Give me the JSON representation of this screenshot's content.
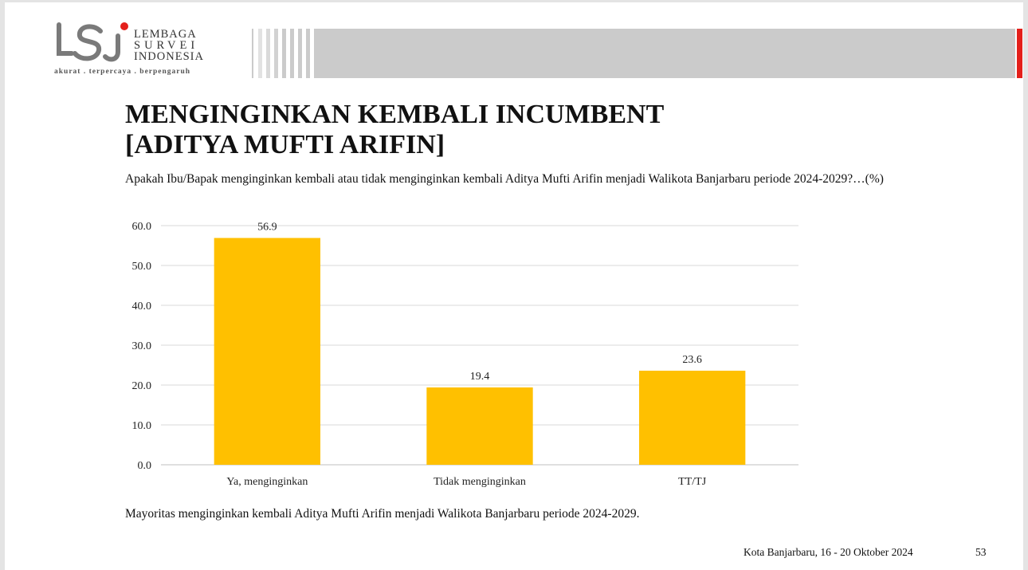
{
  "header": {
    "logo_mark": "LSI",
    "logo_line1": "LEMBAGA",
    "logo_line2": "SURVEI",
    "logo_line3": "INDONESIA",
    "tagline": "akurat . terpercaya . berpengaruh",
    "accent_color": "#e4201b"
  },
  "title_line1": "MENGINGINKAN KEMBALI INCUMBENT",
  "title_line2": "[ADITYA MUFTI ARIFIN]",
  "question": "Apakah Ibu/Bapak menginginkan kembali atau tidak menginginkan kembali Aditya Mufti Arifin menjadi Walikota Banjarbaru periode 2024-2029?…(%)",
  "chart_data": {
    "type": "bar",
    "categories": [
      "Ya, menginginkan",
      "Tidak menginginkan",
      "TT/TJ"
    ],
    "values": [
      56.9,
      19.4,
      23.6
    ],
    "value_labels": [
      "56.9",
      "19.4",
      "23.6"
    ],
    "y_ticks": [
      "0.0",
      "10.0",
      "20.0",
      "30.0",
      "40.0",
      "50.0",
      "60.0"
    ],
    "ylim": [
      0,
      60
    ],
    "grid": true,
    "bar_color": "#ffc000"
  },
  "summary": "Mayoritas menginginkan kembali Aditya Mufti Arifin menjadi Walikota Banjarbaru periode 2024-2029.",
  "footer": {
    "place_date": "Kota Banjarbaru, 16 - 20 Oktober 2024",
    "page_number": "53"
  }
}
